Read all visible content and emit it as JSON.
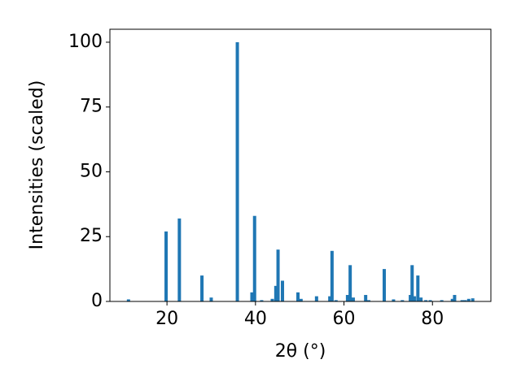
{
  "chart_data": {
    "type": "bar",
    "x_label": "2θ (°)",
    "y_label": "Intensities (scaled)",
    "x": [
      11.3,
      19.8,
      22.8,
      27.9,
      30.0,
      35.9,
      39.2,
      39.8,
      41.4,
      43.8,
      44.6,
      45.1,
      46.1,
      49.6,
      50.3,
      53.8,
      56.8,
      57.3,
      58.2,
      60.8,
      61.4,
      62.1,
      64.9,
      65.6,
      69.1,
      71.2,
      73.2,
      75.0,
      75.4,
      75.9,
      76.7,
      77.4,
      78.5,
      79.5,
      82.1,
      84.5,
      85.0,
      86.7,
      87.4,
      88.2,
      89.1
    ],
    "values": [
      0.8,
      27,
      32,
      10,
      1.5,
      100,
      3.5,
      33,
      0.5,
      1,
      6,
      20,
      8,
      3.5,
      1,
      2,
      2,
      19.5,
      0.5,
      2.5,
      14,
      1.5,
      2.5,
      0.5,
      12.5,
      0.8,
      0.5,
      2.5,
      14,
      2,
      10,
      1.5,
      0.5,
      0.5,
      0.5,
      1,
      2.5,
      0.5,
      0.5,
      1,
      1.2
    ],
    "color": "#1f77b4",
    "xlim": [
      7.1,
      93.2
    ],
    "ylim": [
      0,
      105
    ],
    "xticks": [
      20,
      40,
      60,
      80
    ],
    "yticks": [
      0,
      25,
      50,
      75,
      100
    ],
    "grid": false
  }
}
